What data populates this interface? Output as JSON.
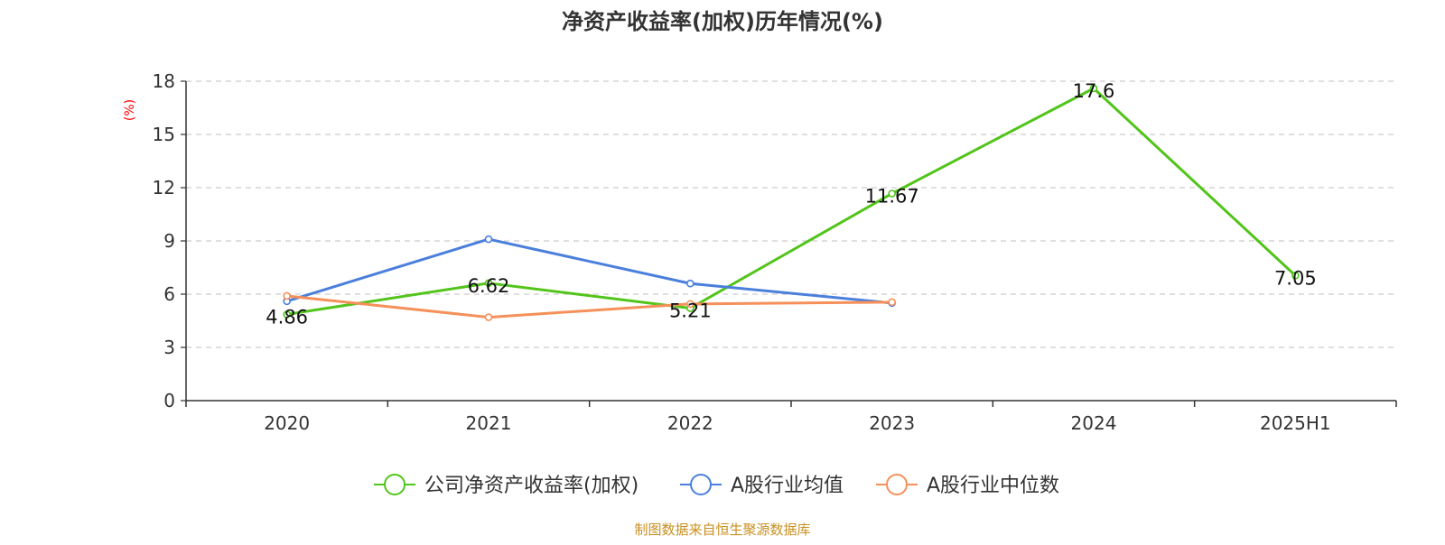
{
  "chart_data": {
    "type": "line",
    "title": "净资产收益率(加权)历年情况(%)",
    "ylabel": "(%)",
    "xlabel": "",
    "categories": [
      "2020",
      "2021",
      "2022",
      "2023",
      "2024",
      "2025H1"
    ],
    "ylim": [
      0,
      18
    ],
    "yticks": [
      0,
      3,
      6,
      9,
      12,
      15,
      18
    ],
    "grid": true,
    "legend_position": "bottom",
    "series": [
      {
        "name": "公司净资产收益率(加权)",
        "color": "#52c41a",
        "values": [
          4.86,
          6.62,
          5.21,
          11.67,
          17.6,
          7.05
        ],
        "labels": [
          "4.86",
          "6.62",
          "5.21",
          "11.67",
          "17.6",
          "7.05"
        ]
      },
      {
        "name": "A股行业均值",
        "color": "#4a7fdc",
        "values": [
          5.6,
          9.1,
          6.6,
          5.5,
          null,
          null
        ]
      },
      {
        "name": "A股行业中位数",
        "color": "#f5905a",
        "values": [
          5.9,
          4.7,
          5.45,
          5.55,
          null,
          null
        ]
      }
    ]
  },
  "colors": {
    "axis": "#333333",
    "grid": "#cccccc",
    "ylabel": "#ff0000",
    "source": "#c89020"
  },
  "source_note": "制图数据来自恒生聚源数据库"
}
